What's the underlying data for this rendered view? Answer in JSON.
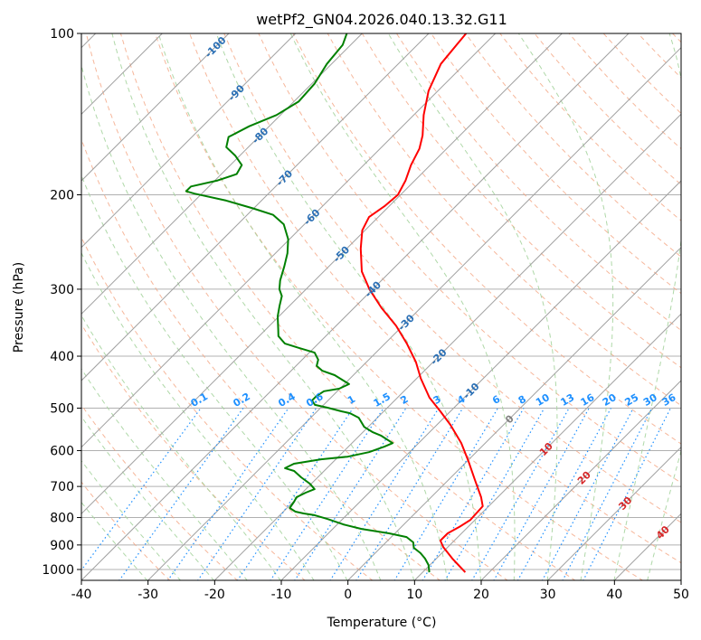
{
  "chart_data": {
    "type": "line",
    "subtype": "skew-t log-p",
    "title": "wetPf2_GN04.2026.040.13.32.G11",
    "xlabel": "Temperature (°C)",
    "ylabel": "Pressure (hPa)",
    "xlim": [
      -40,
      50
    ],
    "ylim": [
      1050,
      100
    ],
    "xticks": [
      -40,
      -30,
      -20,
      -10,
      0,
      10,
      20,
      30,
      40,
      50
    ],
    "yticks": [
      100,
      200,
      300,
      400,
      500,
      600,
      700,
      800,
      900,
      1000
    ],
    "grid": true,
    "series": [
      {
        "name": "Temperature",
        "color": "#ff0000",
        "points": [
          [
            1012,
            16.4
          ],
          [
            954,
            12.4
          ],
          [
            908,
            9.3
          ],
          [
            883,
            7.9
          ],
          [
            856,
            7.9
          ],
          [
            833,
            8.7
          ],
          [
            808,
            9.3
          ],
          [
            762,
            9.1
          ],
          [
            733,
            7.5
          ],
          [
            678,
            3.8
          ],
          [
            628,
            0.2
          ],
          [
            581,
            -3.6
          ],
          [
            537,
            -8.0
          ],
          [
            507,
            -11.5
          ],
          [
            478,
            -15.2
          ],
          [
            440,
            -19.4
          ],
          [
            410,
            -22.6
          ],
          [
            379,
            -26.7
          ],
          [
            351,
            -31.0
          ],
          [
            325,
            -35.9
          ],
          [
            300,
            -40.5
          ],
          [
            278,
            -44.3
          ],
          [
            252,
            -47.9
          ],
          [
            233,
            -50.4
          ],
          [
            220,
            -51.4
          ],
          [
            210,
            -50.7
          ],
          [
            200,
            -50.4
          ],
          [
            188,
            -51.4
          ],
          [
            176,
            -52.9
          ],
          [
            164,
            -54.1
          ],
          [
            155,
            -55.6
          ],
          [
            142,
            -58.5
          ],
          [
            128,
            -61.4
          ],
          [
            114,
            -63.6
          ],
          [
            100,
            -64.4
          ]
        ]
      },
      {
        "name": "Dewpoint",
        "color": "#008000",
        "points": [
          [
            1012,
            11.0
          ],
          [
            981,
            9.8
          ],
          [
            954,
            8.3
          ],
          [
            932,
            6.8
          ],
          [
            911,
            5.0
          ],
          [
            890,
            4.1
          ],
          [
            870,
            2.3
          ],
          [
            856,
            -0.9
          ],
          [
            840,
            -5.7
          ],
          [
            824,
            -9.1
          ],
          [
            805,
            -12.3
          ],
          [
            792,
            -14.8
          ],
          [
            786,
            -16.7
          ],
          [
            780,
            -18.2
          ],
          [
            768,
            -19.6
          ],
          [
            747,
            -19.9
          ],
          [
            733,
            -20.2
          ],
          [
            719,
            -19.5
          ],
          [
            708,
            -18.7
          ],
          [
            692,
            -20.2
          ],
          [
            673,
            -22.5
          ],
          [
            655,
            -24.5
          ],
          [
            647,
            -26.3
          ],
          [
            635,
            -25.6
          ],
          [
            623,
            -22.2
          ],
          [
            616,
            -18.6
          ],
          [
            604,
            -16.1
          ],
          [
            590,
            -14.6
          ],
          [
            581,
            -13.9
          ],
          [
            563,
            -16.7
          ],
          [
            554,
            -18.6
          ],
          [
            542,
            -20.6
          ],
          [
            521,
            -22.8
          ],
          [
            511,
            -24.8
          ],
          [
            507,
            -26.3
          ],
          [
            499,
            -29.0
          ],
          [
            493,
            -31.3
          ],
          [
            484,
            -32.4
          ],
          [
            475,
            -32.4
          ],
          [
            465,
            -32.0
          ],
          [
            460,
            -30.1
          ],
          [
            451,
            -29.3
          ],
          [
            434,
            -32.8
          ],
          [
            426,
            -35.3
          ],
          [
            417,
            -36.9
          ],
          [
            406,
            -37.6
          ],
          [
            394,
            -39.2
          ],
          [
            386,
            -42.3
          ],
          [
            379,
            -45.0
          ],
          [
            367,
            -47.1
          ],
          [
            357,
            -48.1
          ],
          [
            337,
            -50.2
          ],
          [
            322,
            -51.5
          ],
          [
            309,
            -52.6
          ],
          [
            300,
            -54.0
          ],
          [
            289,
            -55.2
          ],
          [
            272,
            -56.7
          ],
          [
            257,
            -58.2
          ],
          [
            242,
            -60.2
          ],
          [
            227,
            -63.1
          ],
          [
            218,
            -66.1
          ],
          [
            212,
            -70.1
          ],
          [
            205,
            -75.3
          ],
          [
            199,
            -81.1
          ],
          [
            197,
            -82.7
          ],
          [
            193,
            -82.7
          ],
          [
            188,
            -79.6
          ],
          [
            183,
            -77.7
          ],
          [
            176,
            -78.3
          ],
          [
            169,
            -80.7
          ],
          [
            163,
            -83.3
          ],
          [
            156,
            -84.5
          ],
          [
            149,
            -83.0
          ],
          [
            142,
            -80.6
          ],
          [
            134,
            -79.3
          ],
          [
            124,
            -79.6
          ],
          [
            114,
            -80.7
          ],
          [
            105,
            -81.2
          ],
          [
            100,
            -82.3
          ]
        ]
      }
    ],
    "isotherm_labels": [
      {
        "text": "-100",
        "value": -100,
        "p": 106
      },
      {
        "text": "-90",
        "value": -90,
        "p": 129
      },
      {
        "text": "-80",
        "value": -80,
        "p": 155
      },
      {
        "text": "-70",
        "value": -70,
        "p": 186
      },
      {
        "text": "-60",
        "value": -60,
        "p": 220
      },
      {
        "text": "-50",
        "value": -50,
        "p": 258
      },
      {
        "text": "-40",
        "value": -40,
        "p": 300
      },
      {
        "text": "-30",
        "value": -30,
        "p": 346
      },
      {
        "text": "-20",
        "value": -20,
        "p": 401
      },
      {
        "text": "-10",
        "value": -10,
        "p": 464
      },
      {
        "text": "0",
        "value": 0,
        "p": 524
      },
      {
        "text": "10",
        "value": 10,
        "p": 596
      },
      {
        "text": "20",
        "value": 20,
        "p": 674
      },
      {
        "text": "30",
        "value": 30,
        "p": 752
      },
      {
        "text": "40",
        "value": 40,
        "p": 852
      }
    ],
    "mixing_ratio_labels": [
      "0.1",
      "0.2",
      "0.4",
      "0.6",
      "1",
      "1.5",
      "2",
      "3",
      "4",
      "6",
      "8",
      "10",
      "13",
      "16",
      "20",
      "25",
      "30",
      "36"
    ],
    "mixing_ratio_values": [
      0.1,
      0.2,
      0.4,
      0.6,
      1,
      1.5,
      2,
      3,
      4,
      6,
      8,
      10,
      13,
      16,
      20,
      25,
      30,
      36
    ],
    "colors": {
      "isotherm": "#a0a0a0",
      "dry_adiabat": "#f4a582",
      "moist_adiabat": "#a6d49f",
      "mixing_ratio": "#1e90ff",
      "label_cold": "#2a6fb5",
      "label_zero": "#808080",
      "label_warm": "#d62728"
    }
  }
}
